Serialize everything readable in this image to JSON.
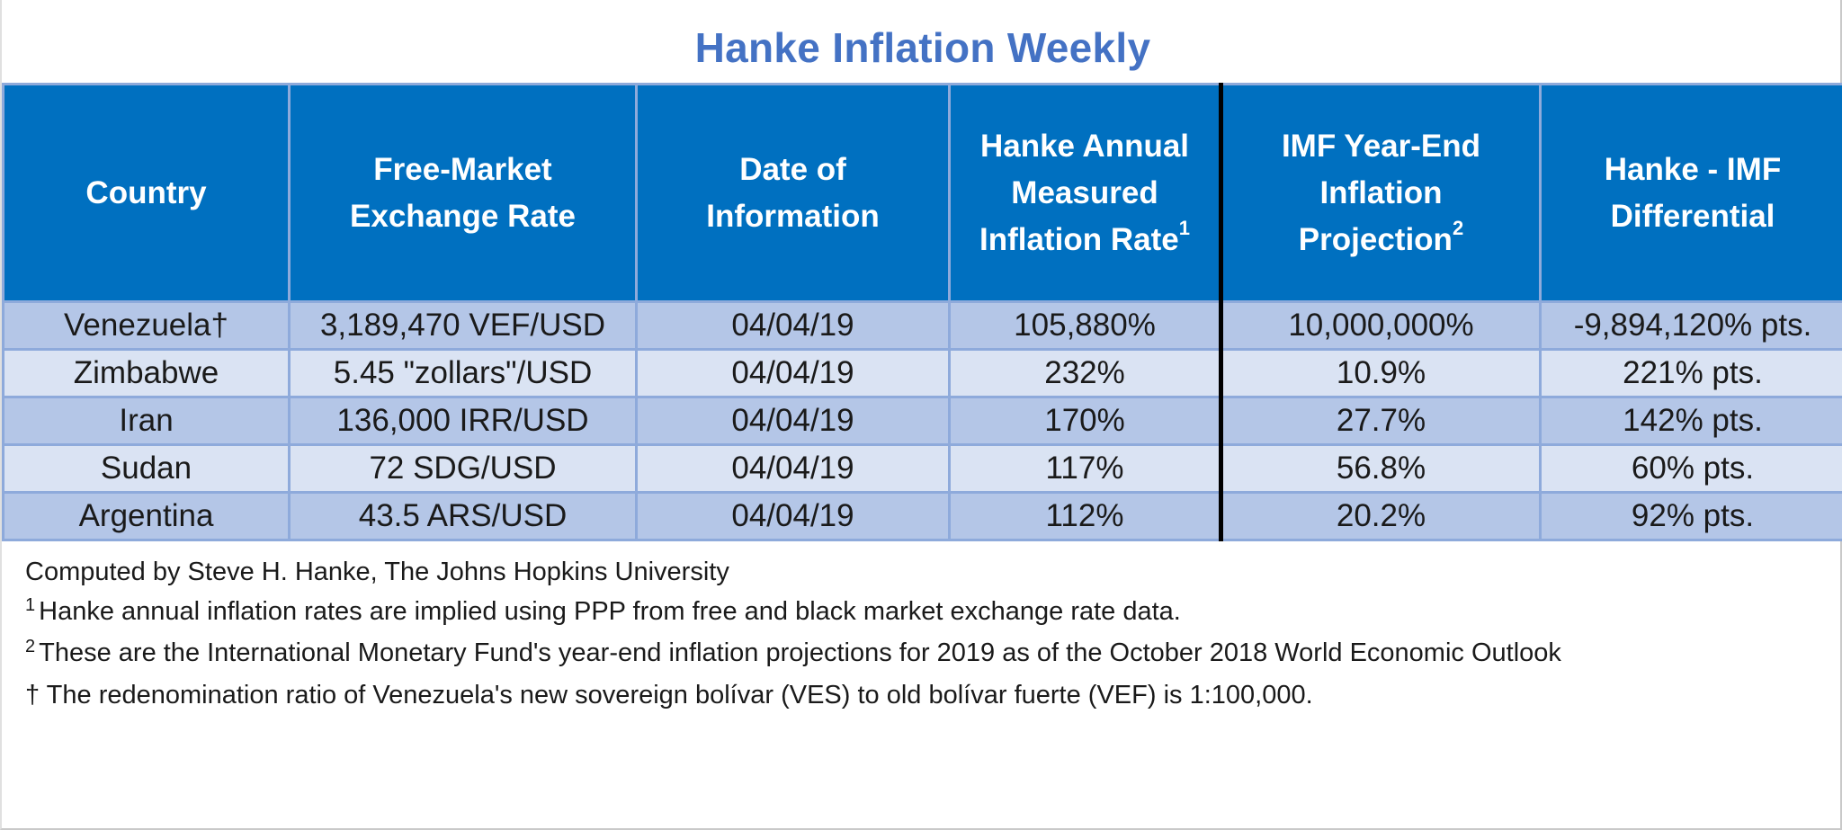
{
  "title": "Hanke Inflation Weekly",
  "table": {
    "headers": [
      {
        "line1": "Country",
        "line2": "",
        "line3": "",
        "sup": ""
      },
      {
        "line1": "Free-Market",
        "line2": "Exchange Rate",
        "line3": "",
        "sup": ""
      },
      {
        "line1": "Date of",
        "line2": "Information",
        "line3": "",
        "sup": ""
      },
      {
        "line1": "Hanke Annual",
        "line2": "Measured",
        "line3": "Inflation Rate",
        "sup": "1"
      },
      {
        "line1": "IMF Year-End",
        "line2": "Inflation",
        "line3": "Projection",
        "sup": "2"
      },
      {
        "line1": "Hanke - IMF",
        "line2": "Differential",
        "line3": "",
        "sup": ""
      }
    ],
    "rows": [
      {
        "country": "Venezuela†",
        "rate": "3,189,470 VEF/USD",
        "date": "04/04/19",
        "hanke": "105,880%",
        "imf": "10,000,000%",
        "diff": "-9,894,120% pts."
      },
      {
        "country": "Zimbabwe",
        "rate": "5.45 \"zollars\"/USD",
        "date": "04/04/19",
        "hanke": "232%",
        "imf": "10.9%",
        "diff": "221% pts."
      },
      {
        "country": "Iran",
        "rate": "136,000 IRR/USD",
        "date": "04/04/19",
        "hanke": "170%",
        "imf": "27.7%",
        "diff": "142% pts."
      },
      {
        "country": "Sudan",
        "rate": "72 SDG/USD",
        "date": "04/04/19",
        "hanke": "117%",
        "imf": "56.8%",
        "diff": "60% pts."
      },
      {
        "country": "Argentina",
        "rate": "43.5 ARS/USD",
        "date": "04/04/19",
        "hanke": "112%",
        "imf": "20.2%",
        "diff": "92% pts."
      }
    ]
  },
  "notes": {
    "credit": "Computed by Steve H. Hanke, The Johns Hopkins University",
    "footnote1_mark": "1",
    "footnote1": "Hanke annual inflation rates are implied using PPP from free and black market exchange rate data.",
    "footnote2_mark": "2",
    "footnote2": "These are the International Monetary Fund's year-end inflation projections for 2019 as of the October 2018 World Economic Outlook",
    "dagger_note": "† The redenomination ratio of Venezuela's new sovereign bolívar (VES) to old bolívar fuerte (VEF) is 1:100,000."
  },
  "colors": {
    "title": "#4472c4",
    "header_bg": "#0070c0",
    "row_odd": "#b4c6e7",
    "row_even": "#dae3f3",
    "grid": "#8eaadb",
    "divider": "#000000"
  }
}
